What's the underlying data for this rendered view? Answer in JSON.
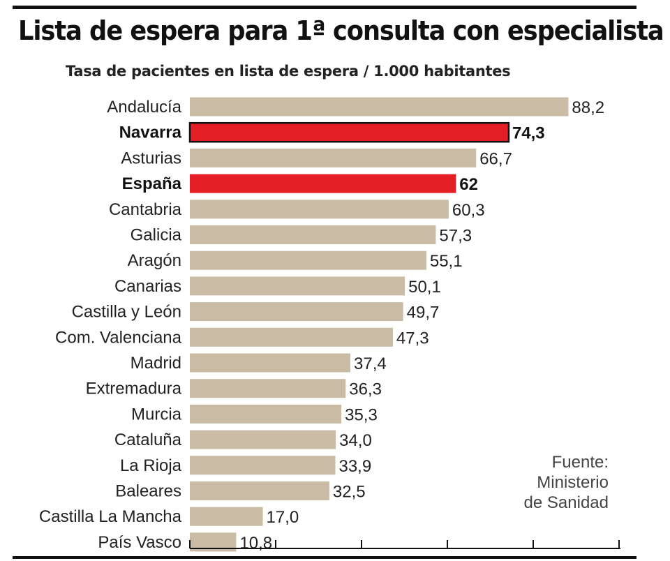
{
  "header": {
    "title": "Lista de espera para 1ª consulta con especialista",
    "subtitle": "Tasa de pacientes en lista de espera / 1.000 habitantes"
  },
  "source": {
    "line1": "Fuente:",
    "line2": "Ministerio",
    "line3": "de Sanidad"
  },
  "colors": {
    "bar": "#c9bba4",
    "highlight": "#e41e26",
    "rule": "#111111"
  },
  "chart_data": {
    "type": "bar",
    "orientation": "horizontal",
    "title": "Lista de espera para 1ª consulta con especialista",
    "subtitle": "Tasa de pacientes en lista de espera / 1.000 habitantes",
    "categories": [
      "Andalucía",
      "Navarra",
      "Asturias",
      "España",
      "Cantabria",
      "Galicia",
      "Aragón",
      "Canarias",
      "Castilla y León",
      "Com. Valenciana",
      "Madrid",
      "Extremadura",
      "Murcia",
      "Cataluña",
      "La Rioja",
      "Baleares",
      "Castilla La Mancha",
      "País Vasco"
    ],
    "values": [
      88.2,
      74.3,
      66.7,
      62,
      60.3,
      57.3,
      55.1,
      50.1,
      49.7,
      47.3,
      37.4,
      36.3,
      35.3,
      34.0,
      33.9,
      32.5,
      17.0,
      10.8
    ],
    "value_labels": [
      "88,2",
      "74,3",
      "66,7",
      "62",
      "60,3",
      "57,3",
      "55,1",
      "50,1",
      "49,7",
      "47,3",
      "37,4",
      "36,3",
      "35,3",
      "34,0",
      "33,9",
      "32,5",
      "17,0",
      "10,8"
    ],
    "highlighted": [
      "Navarra",
      "España"
    ],
    "xlim": [
      0,
      100
    ],
    "xticks": [
      0,
      20,
      40,
      60,
      80,
      100
    ],
    "grid": false,
    "legend": "none"
  }
}
